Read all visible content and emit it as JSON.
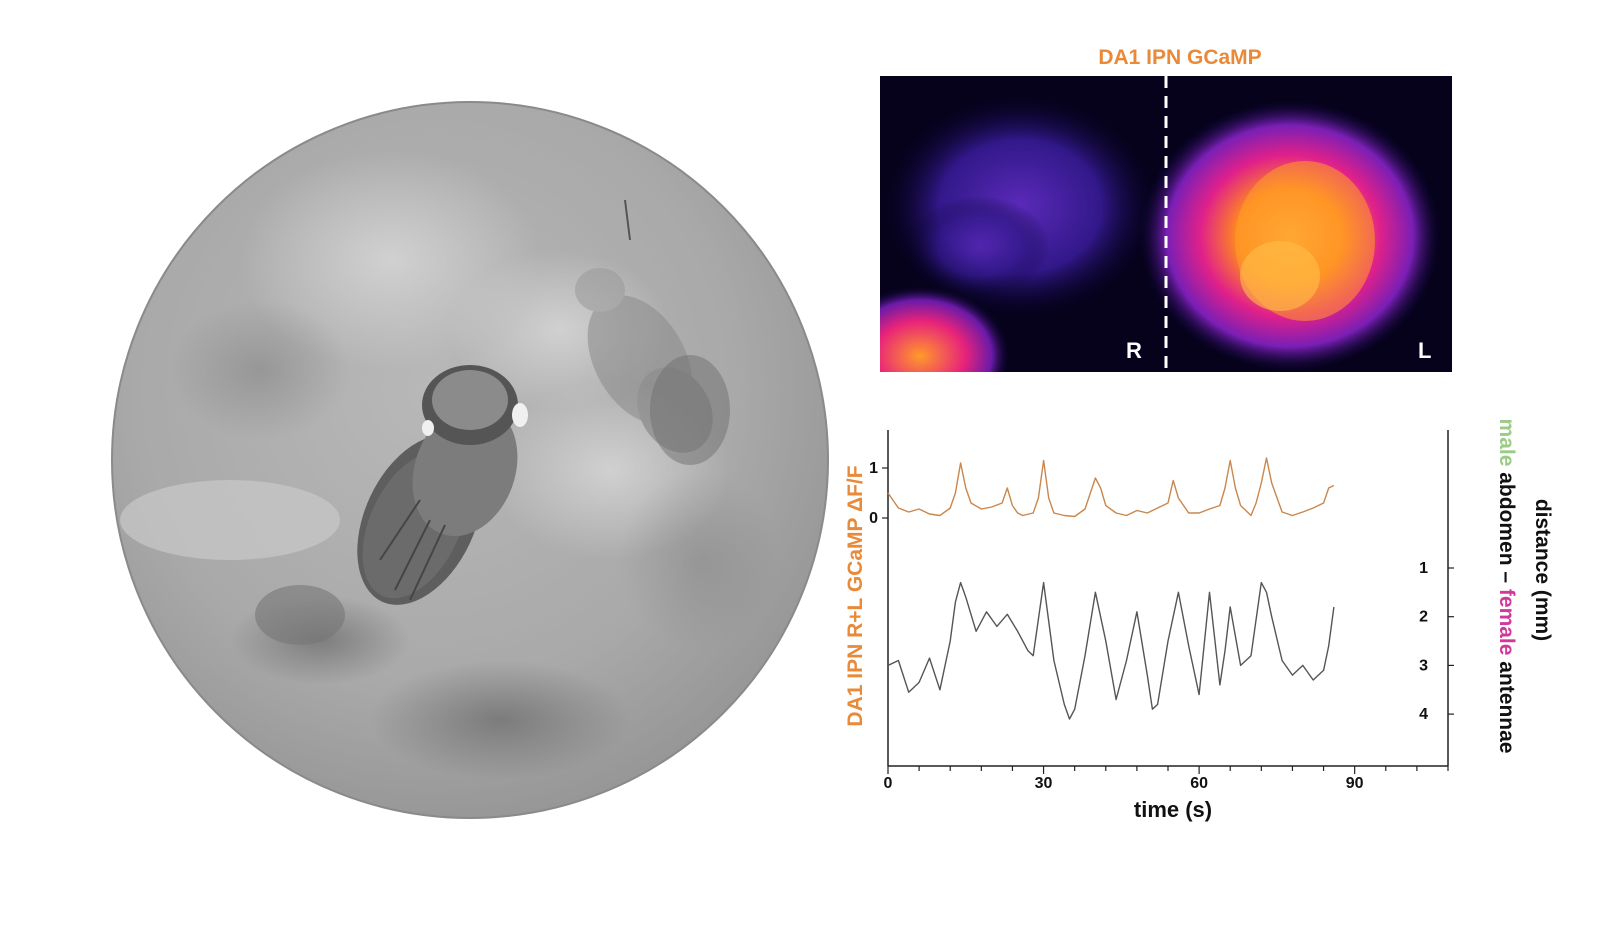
{
  "imaging": {
    "title": "DA1 IPN GCaMP",
    "hemisphere_right_label": "R",
    "hemisphere_left_label": "L"
  },
  "colors": {
    "gcamp_orange": "#E98A3A",
    "trace_orange": "#C9874D",
    "distance_trace": "#555555",
    "male_green": "#9CCB86",
    "female_magenta": "#D4379B",
    "axis": "#222222"
  },
  "chart_data": {
    "type": "line",
    "xlabel": "time (s)",
    "x_ticks": [
      0,
      30,
      60,
      90
    ],
    "xlim": [
      0,
      108
    ],
    "left_axis": {
      "label": "DA1 IPN R+L GCaMP ΔF/F",
      "ticks": [
        0,
        1
      ]
    },
    "right_axis": {
      "label_line1": "distance (mm)",
      "label_line2_parts": [
        "male",
        " abdomen – ",
        "female",
        " antennae"
      ],
      "ticks": [
        1,
        2,
        3,
        4
      ],
      "inverted": true
    },
    "series": [
      {
        "axis": "left",
        "x": [
          0,
          2,
          4,
          6,
          8,
          10,
          12,
          13,
          14,
          15,
          16,
          18,
          20,
          22,
          23,
          24,
          25,
          26,
          28,
          29,
          30,
          31,
          32,
          34,
          36,
          38,
          40,
          41,
          42,
          44,
          46,
          48,
          50,
          52,
          54,
          55,
          56,
          58,
          60,
          62,
          64,
          65,
          66,
          67,
          68,
          70,
          71,
          72,
          73,
          74,
          76,
          78,
          80,
          82,
          84,
          85,
          86
        ],
        "y": [
          0.5,
          0.2,
          0.12,
          0.18,
          0.08,
          0.05,
          0.2,
          0.5,
          1.1,
          0.6,
          0.3,
          0.18,
          0.22,
          0.3,
          0.6,
          0.25,
          0.1,
          0.05,
          0.1,
          0.4,
          1.15,
          0.4,
          0.1,
          0.05,
          0.03,
          0.18,
          0.8,
          0.6,
          0.25,
          0.1,
          0.05,
          0.15,
          0.1,
          0.2,
          0.3,
          0.75,
          0.4,
          0.1,
          0.1,
          0.18,
          0.25,
          0.6,
          1.15,
          0.6,
          0.25,
          0.05,
          0.3,
          0.7,
          1.2,
          0.7,
          0.12,
          0.05,
          0.12,
          0.2,
          0.3,
          0.6,
          0.65
        ]
      },
      {
        "axis": "right",
        "x": [
          0,
          2,
          4,
          6,
          8,
          10,
          12,
          13,
          14,
          15,
          17,
          19,
          21,
          23,
          25,
          27,
          28,
          30,
          32,
          34,
          35,
          36,
          38,
          40,
          42,
          44,
          46,
          48,
          50,
          51,
          52,
          54,
          56,
          58,
          60,
          62,
          64,
          65,
          66,
          68,
          70,
          72,
          73,
          74,
          76,
          78,
          80,
          82,
          84,
          85,
          86
        ],
        "y": [
          3,
          2.9,
          3.55,
          3.35,
          2.85,
          3.5,
          2.5,
          1.7,
          1.3,
          1.6,
          2.3,
          1.9,
          2.2,
          1.95,
          2.3,
          2.7,
          2.8,
          1.3,
          2.9,
          3.8,
          4.1,
          3.9,
          2.8,
          1.5,
          2.5,
          3.7,
          2.9,
          1.9,
          3.2,
          3.9,
          3.8,
          2.5,
          1.5,
          2.6,
          3.6,
          1.5,
          3.4,
          2.7,
          1.8,
          3.0,
          2.8,
          1.3,
          1.5,
          2.0,
          2.9,
          3.2,
          3.0,
          3.3,
          3.1,
          2.6,
          1.8
        ]
      }
    ]
  }
}
